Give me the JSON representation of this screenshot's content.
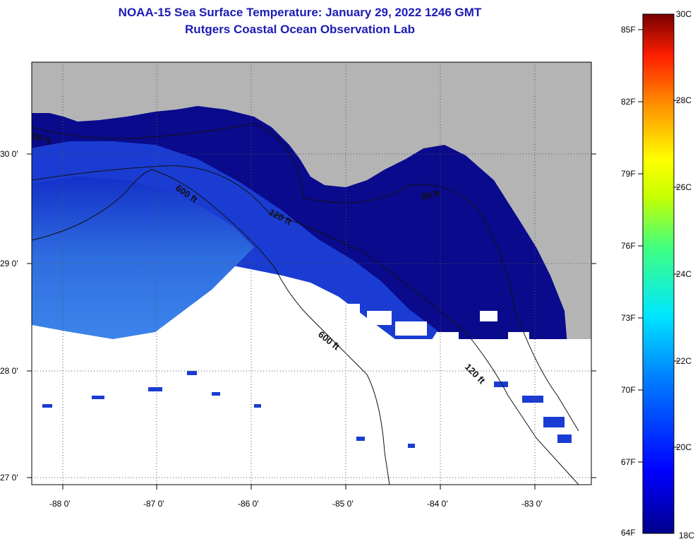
{
  "title": {
    "line1": "NOAA-15 Sea Surface Temperature:  January 29, 2022 1246 GMT",
    "line2": "Rutgers Coastal Ocean Observation Lab"
  },
  "map": {
    "lat_labels": [
      "30 0'",
      "29 0'",
      "28 0'",
      "27 0'"
    ],
    "lon_labels": [
      "-88 0'",
      "-87 0'",
      "-86 0'",
      "-85 0'",
      "-84 0'",
      "-83 0'"
    ],
    "contour_labels": [
      "50 ft",
      "600 ft",
      "120 ft",
      "50 ft",
      "600 ft",
      "120 ft"
    ],
    "colors": {
      "land": "#b4b4b4",
      "no_data": "#ffffff",
      "cold_water": "#0a0a8c",
      "mid_water": "#1a3cd2",
      "warm_water": "#3c7ee6"
    }
  },
  "colorbar": {
    "fahrenheit_labels": [
      "85F",
      "82F",
      "79F",
      "76F",
      "73F",
      "70F",
      "67F",
      "64F"
    ],
    "celsius_labels": [
      "30C",
      "28C",
      "26C",
      "24C",
      "22C",
      "20C",
      "18C"
    ],
    "range_c": [
      18,
      30
    ],
    "range_f": [
      64,
      86
    ]
  }
}
